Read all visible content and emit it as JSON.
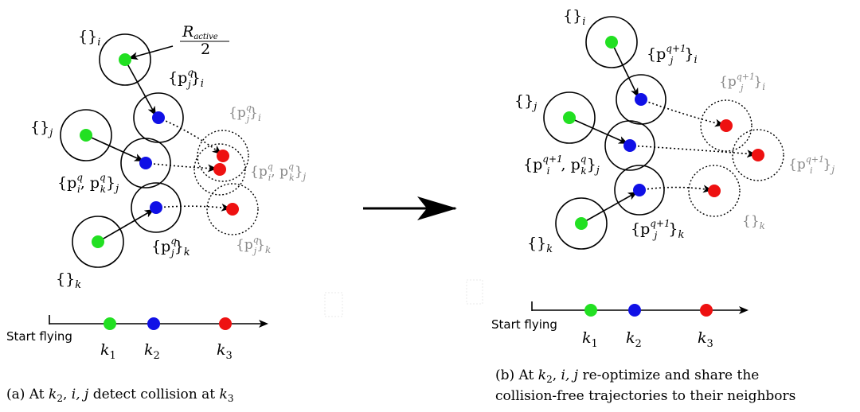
{
  "colors": {
    "start": "#22e022",
    "current": "#1010e6",
    "collision": "#ee1111"
  },
  "panel_a": {
    "label_i": "{}",
    "sub_i": "i",
    "label_j": "{}",
    "sub_j": "j",
    "label_k": "{}",
    "sub_k": "k",
    "radius_num": "R",
    "radius_sub": "active",
    "radius_den": "2",
    "blue_i": "{p",
    "blue_i_sup": "q",
    "blue_i_sub": "j",
    "blue_i_close": "}",
    "blue_i_idx": "i",
    "blue_j": "{p",
    "blue_j_sup1": "q",
    "blue_j_sub1": "i",
    "blue_j_mid": ", p",
    "blue_j_sup2": "q",
    "blue_j_sub2": "k",
    "blue_j_close": "}",
    "blue_j_idx": "j",
    "blue_k": "{p",
    "blue_k_sup": "q",
    "blue_k_sub": "j",
    "blue_k_close": "}",
    "blue_k_idx": "k",
    "red_i": "{p",
    "red_i_sup": "q",
    "red_i_sub": "j",
    "red_i_close": "}",
    "red_i_idx": "i",
    "red_j": "{p",
    "red_j_sup1": "q",
    "red_j_sub1": "i",
    "red_j_mid": ", p",
    "red_j_sup2": "q",
    "red_j_sub2": "k",
    "red_j_close": "}",
    "red_j_idx": "j",
    "red_k": "{p",
    "red_k_sup": "q",
    "red_k_sub": "j",
    "red_k_close": "}",
    "red_k_idx": "k",
    "timeline_start": "Start flying",
    "k1": "k",
    "k1_sub": "1",
    "k2": "k",
    "k2_sub": "2",
    "k3": "k",
    "k3_sub": "3",
    "caption_1": "(a) At ",
    "caption_k": "k",
    "caption_k_sub": "2",
    "caption_2": ", ",
    "caption_ij": "i, j",
    "caption_3": " detect collision at ",
    "caption_k3": "k",
    "caption_k3_sub": "3"
  },
  "panel_b": {
    "label_i": "{}",
    "sub_i": "i",
    "label_j": "{}",
    "sub_j": "j",
    "label_k": "{}",
    "sub_k": "k",
    "blue_i": "{p",
    "blue_i_sup": "q+1",
    "blue_i_sub": "j",
    "blue_i_close": "}",
    "blue_i_idx": "i",
    "blue_j": "{p",
    "blue_j_sup1": "q+1",
    "blue_j_sub1": "i",
    "blue_j_mid": ", p",
    "blue_j_sup2": "q",
    "blue_j_sub2": "k",
    "blue_j_close": "}",
    "blue_j_idx": "j",
    "blue_k": "{p",
    "blue_k_sup": "q+1",
    "blue_k_sub": "j",
    "blue_k_close": "}",
    "blue_k_idx": "k",
    "red_i": "{p",
    "red_i_sup": "q+1",
    "red_i_sub": "j",
    "red_i_close": "}",
    "red_i_idx": "i",
    "red_j": "{p",
    "red_j_sup": "q+1",
    "red_j_sub": "i",
    "red_j_close": "}",
    "red_j_idx": "j",
    "red_k": "{}",
    "red_k_idx": "k",
    "timeline_start": "Start flying",
    "k1": "k",
    "k1_sub": "1",
    "k2": "k",
    "k2_sub": "2",
    "k3": "k",
    "k3_sub": "3",
    "caption_line1_1": "(b) At ",
    "caption_line1_k": "k",
    "caption_line1_k_sub": "2",
    "caption_line1_2": ",  ",
    "caption_line1_ij": "i, j",
    "caption_line1_3": "  re-optimize and share the",
    "caption_line2": "collision-free trajectories to their neighbors"
  }
}
